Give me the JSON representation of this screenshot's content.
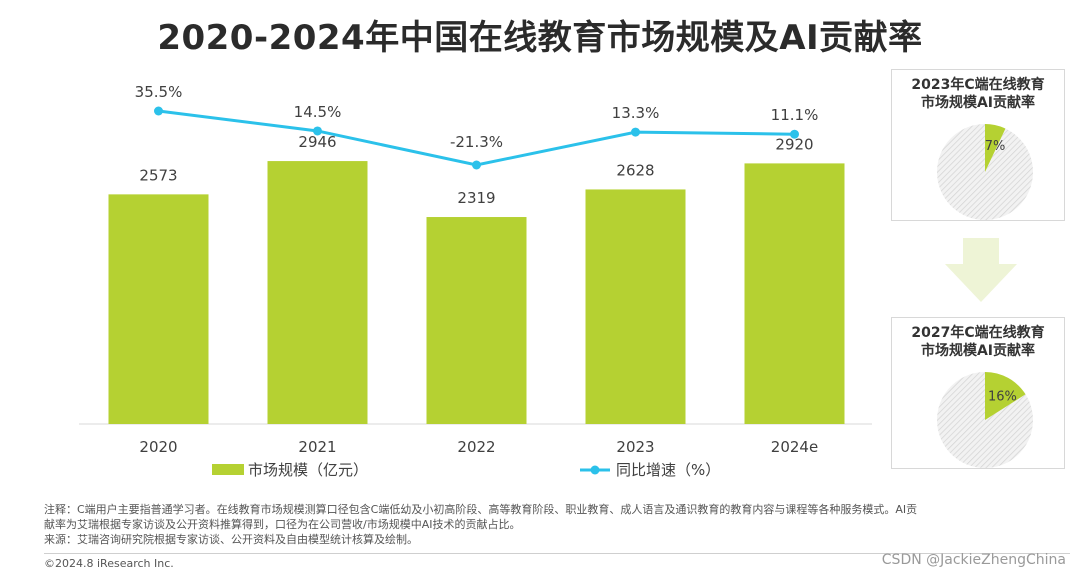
{
  "title": "2020-2024年中国在线教育市场规模及AI贡献率",
  "chart_data": [
    {
      "type": "bar",
      "categories": [
        "2020",
        "2021",
        "2022",
        "2023",
        "2024e"
      ],
      "series": [
        {
          "name": "市场规模（亿元）",
          "type": "bar",
          "values": [
            2573,
            2946,
            2319,
            2628,
            2920
          ],
          "color": "#b5d132"
        },
        {
          "name": "同比增速（%）",
          "type": "line",
          "values": [
            35.5,
            14.5,
            -21.3,
            13.3,
            11.1
          ],
          "labels": [
            "35.5%",
            "14.5%",
            "-21.3%",
            "13.3%",
            "11.1%"
          ],
          "color": "#2bc1ea"
        }
      ],
      "bar_labels": [
        "2573",
        "2946",
        "2319",
        "2628",
        "2920"
      ],
      "legend": [
        "市场规模（亿元）",
        "同比增速（%）"
      ],
      "legend_position": "bottom"
    },
    {
      "type": "pie",
      "title": "2023年C端在线教育市场规模AI贡献率",
      "values": [
        7,
        93
      ],
      "label": "7%"
    },
    {
      "type": "pie",
      "title": "2027年C端在线教育市场规模AI贡献率",
      "values": [
        16,
        84
      ],
      "label": "16%"
    }
  ],
  "panels": [
    {
      "title_line1": "2023年C端在线教育",
      "title_line2": "市场规模AI贡献率",
      "label": "7%"
    },
    {
      "title_line1": "2027年C端在线教育",
      "title_line2": "市场规模AI贡献率",
      "label": "16%"
    }
  ],
  "notes": {
    "line1": "注释：C端用户主要指普通学习者。在线教育市场规模测算口径包含C端低幼及小初高阶段、高等教育阶段、职业教育、成人语言及通识教育的教育内容与课程等各种服务模式。AI贡",
    "line2": "献率为艾瑞根据专家访谈及公开资料推算得到，口径为在公司营收/市场规模中AI技术的贡献占比。",
    "line3": "来源：艾瑞咨询研究院根据专家访谈、公开资料及自由模型统计核算及绘制。"
  },
  "copyright": "©2024.8 iResearch Inc.",
  "watermark": "CSDN @JackieZhengChina",
  "colors": {
    "bar": "#b5d132",
    "line": "#2bc1ea",
    "pie_rest": "#e8e8e8",
    "arrow": "#eef4d6"
  }
}
